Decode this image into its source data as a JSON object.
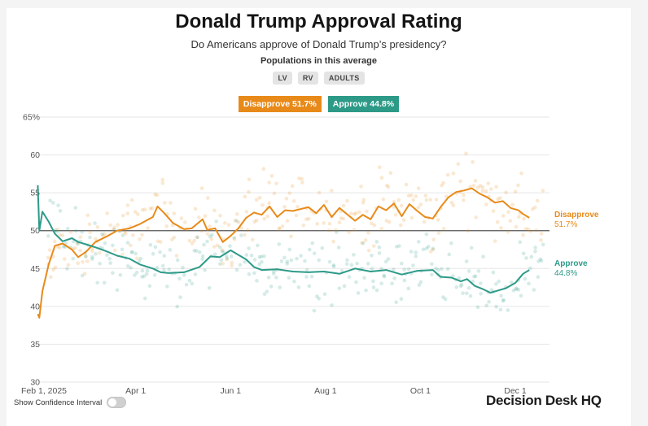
{
  "header": {
    "title": "Donald Trump Approval Rating",
    "subtitle": "Do Americans approve of Donald Trump’s presidency?",
    "populations_label": "Populations in this average",
    "populations": [
      "LV",
      "RV",
      "ADULTS"
    ]
  },
  "legend": {
    "disapprove": "Disapprove  51.7%",
    "approve": "Approve  44.8%"
  },
  "colors": {
    "disapprove": "#e88a1a",
    "approve": "#2d9a88",
    "grid": "#e6e6e6",
    "fifty": "#555555"
  },
  "chart_data": {
    "type": "line",
    "title": "Donald Trump Approval Rating",
    "ylim": [
      30,
      65
    ],
    "y_ticks": [
      "65%",
      "60",
      "55",
      "50",
      "45",
      "40",
      "35",
      "30"
    ],
    "x_domain": [
      0,
      325
    ],
    "x_ticks": [
      {
        "day": 0,
        "label": "Feb 1, 2025"
      },
      {
        "day": 59,
        "label": "Apr 1"
      },
      {
        "day": 120,
        "label": "Jun 1"
      },
      {
        "day": 181,
        "label": "Aug 1"
      },
      {
        "day": 242,
        "label": "Oct 1"
      },
      {
        "day": 303,
        "label": "Dec 1"
      }
    ],
    "series": [
      {
        "name": "Disapprove",
        "end_label": "Disapprove",
        "end_value": "51.7%",
        "days": [
          -4,
          -3,
          -1,
          3,
          7,
          12,
          18,
          22,
          27,
          33,
          40,
          47,
          55,
          62,
          70,
          73,
          77,
          83,
          90,
          95,
          102,
          105,
          110,
          115,
          120,
          125,
          130,
          135,
          140,
          145,
          150,
          155,
          160,
          170,
          175,
          180,
          185,
          190,
          200,
          205,
          210,
          215,
          220,
          225,
          230,
          235,
          240,
          245,
          250,
          255,
          260,
          265,
          270,
          275,
          280,
          285,
          290,
          295,
          300,
          305,
          308,
          312
        ],
        "values": [
          39,
          38.5,
          42,
          45.5,
          48,
          48.3,
          47.5,
          46.5,
          47.2,
          48.5,
          49.2,
          50,
          50.3,
          50.9,
          51.8,
          53.2,
          52.4,
          51,
          50.2,
          50.3,
          51.5,
          50.1,
          50.3,
          48.5,
          49.3,
          50.3,
          51.7,
          52.4,
          52.1,
          53.2,
          51.8,
          52.7,
          52.6,
          53.1,
          52.3,
          53.4,
          51.8,
          53,
          51.3,
          52.1,
          51.5,
          53.2,
          52.7,
          53.6,
          51.9,
          53.5,
          52.6,
          51.8,
          51.6,
          53.1,
          54.4,
          55.1,
          55.3,
          55.6,
          54.9,
          54.4,
          53.7,
          53.9,
          53,
          52.7,
          52.2,
          51.7
        ]
      },
      {
        "name": "Approve",
        "end_label": "Approve",
        "end_value": "44.8%",
        "days": [
          -4,
          -3,
          -1,
          3,
          7,
          12,
          18,
          22,
          27,
          33,
          40,
          47,
          55,
          62,
          70,
          75,
          80,
          90,
          100,
          107,
          113,
          120,
          125,
          130,
          135,
          140,
          150,
          160,
          170,
          180,
          190,
          200,
          210,
          220,
          230,
          240,
          250,
          255,
          262,
          268,
          272,
          277,
          282,
          287,
          292,
          297,
          303,
          308,
          312
        ],
        "values": [
          56,
          50,
          52.5,
          51.2,
          49.6,
          48.6,
          49,
          48.5,
          48.2,
          47.8,
          47.3,
          46.7,
          46.3,
          45.5,
          45,
          44.5,
          44.4,
          44.5,
          45.2,
          46.6,
          46.5,
          47.4,
          46.8,
          46.2,
          45.2,
          44.8,
          44.9,
          44.6,
          44.5,
          44.6,
          44.3,
          45,
          44.6,
          44.8,
          44.2,
          44.7,
          44.8,
          43.9,
          43.8,
          43.3,
          43.6,
          42.7,
          42.3,
          41.8,
          42.1,
          42.4,
          43.1,
          44.3,
          44.8
        ]
      }
    ]
  },
  "controls": {
    "confidence_label": "Show Confidence Interval"
  },
  "brand": "Decision Desk HQ"
}
